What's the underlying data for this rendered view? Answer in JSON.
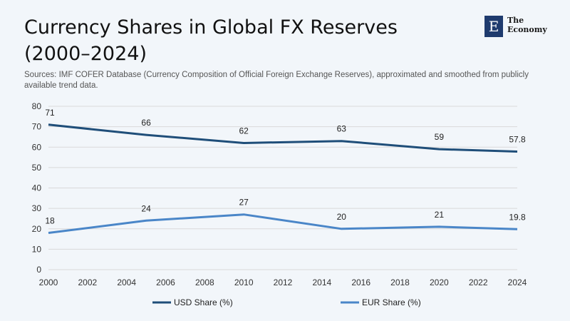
{
  "header": {
    "title_line1": "Currency Shares in Global FX Reserves",
    "title_line2": "(2000–2024)",
    "subtitle": "Sources: IMF COFER Database (Currency Composition of Official Foreign Exchange Reserves), approximated and smoothed from publicly available trend data."
  },
  "logo": {
    "mark": "E",
    "line1": "The",
    "line2": "Economy"
  },
  "colors": {
    "usd": "#1f4e79",
    "eur": "#4a86c8"
  },
  "chart_data": {
    "type": "line",
    "title": "Currency Shares in Global FX Reserves (2000–2024)",
    "xlim": [
      2000,
      2024
    ],
    "ylim": [
      0,
      80
    ],
    "x_ticks": [
      2000,
      2002,
      2004,
      2006,
      2008,
      2010,
      2012,
      2014,
      2016,
      2018,
      2020,
      2022,
      2024
    ],
    "y_ticks": [
      0,
      10,
      20,
      30,
      40,
      50,
      60,
      70,
      80
    ],
    "grid": true,
    "legend_position": "bottom",
    "series": [
      {
        "name": "USD Share (%)",
        "x": [
          2000,
          2005,
          2010,
          2015,
          2020,
          2024
        ],
        "values": [
          71,
          66,
          62,
          63,
          59,
          57.8
        ],
        "labels": [
          "71",
          "66",
          "62",
          "63",
          "59",
          "57.8"
        ]
      },
      {
        "name": "EUR Share (%)",
        "x": [
          2000,
          2005,
          2010,
          2015,
          2020,
          2024
        ],
        "values": [
          18,
          24,
          27,
          20,
          21,
          19.8
        ],
        "labels": [
          "18",
          "24",
          "27",
          "20",
          "21",
          "19.8"
        ]
      }
    ]
  }
}
